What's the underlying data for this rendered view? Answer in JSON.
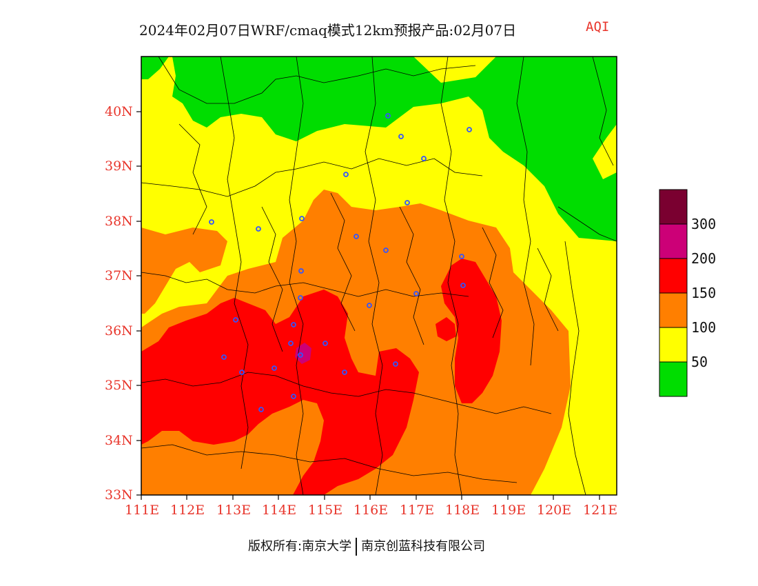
{
  "header": {
    "title": "2024年02月07日WRF/cmaq模式12km预报产品:02月07日",
    "product": "AQI"
  },
  "map": {
    "lat_labels": [
      "40N",
      "39N",
      "38N",
      "37N",
      "36N",
      "35N",
      "34N",
      "33N"
    ],
    "lon_labels": [
      "111E",
      "112E",
      "113E",
      "114E",
      "115E",
      "116E",
      "117E",
      "118E",
      "119E",
      "120E",
      "121E"
    ],
    "lat_range": [
      33,
      41
    ],
    "lon_range": [
      111,
      121.4
    ]
  },
  "legend": {
    "thresholds": [
      "300",
      "200",
      "150",
      "100",
      "50"
    ],
    "colors": {
      "gt300": "#7a0030",
      "200-300": "#cc0077",
      "150-200": "#ff0000",
      "100-150": "#ff7f00",
      "50-100": "#ffff00",
      "lt50": "#00dd00"
    }
  },
  "footer": {
    "left": "版权所有:南京大学",
    "right": "南京创蓝科技有限公司"
  }
}
